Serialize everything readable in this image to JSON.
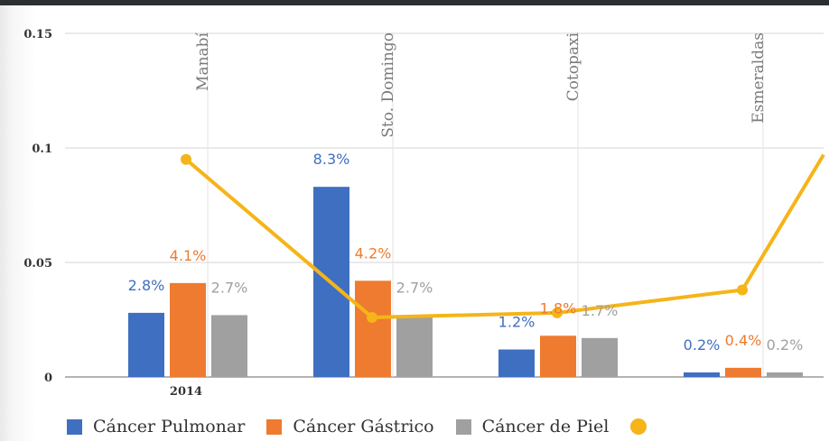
{
  "chart_data": {
    "type": "bar",
    "categories": [
      "Manabí",
      "Sto. Domingo",
      "Cotopaxi",
      "Esmeraldas"
    ],
    "x_group_label": "2014",
    "ylim": [
      0,
      0.15
    ],
    "yticks": [
      "0",
      "0.05",
      "0.1",
      "0.15"
    ],
    "grid": true,
    "legend": "bottom",
    "series": [
      {
        "name": "Cáncer Pulmonar",
        "color": "#3f6fc1",
        "values": [
          0.028,
          0.083,
          0.012,
          0.002
        ],
        "labels": [
          "2.8%",
          "8.3%",
          "1.2%",
          "0.2%"
        ]
      },
      {
        "name": "Cáncer Gástrico",
        "color": "#ee7b30",
        "values": [
          0.041,
          0.042,
          0.018,
          0.004
        ],
        "labels": [
          "4.1%",
          "4.2%",
          "1.8%",
          "0.4%"
        ]
      },
      {
        "name": "Cáncer de Piel",
        "color": "#a0a0a0",
        "values": [
          0.027,
          0.027,
          0.017,
          0.002
        ],
        "labels": [
          "2.7%",
          "2.7%",
          "1.7%",
          "0.2%"
        ]
      }
    ],
    "line_series": {
      "name": "",
      "color": "#f5b418",
      "values": [
        0.095,
        0.026,
        0.028,
        0.038,
        0.097
      ]
    }
  }
}
